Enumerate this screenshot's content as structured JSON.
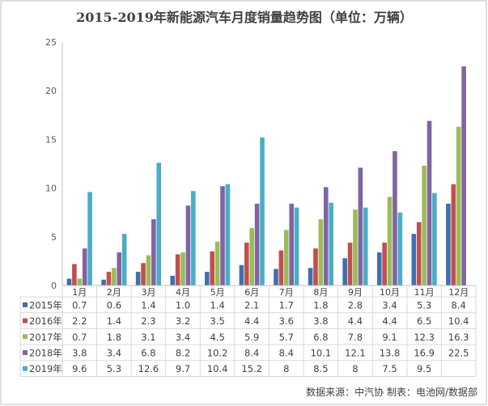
{
  "chart_data": {
    "type": "bar",
    "title": "2015-2019年新能源汽车月度销量趋势图（单位：万辆）",
    "categories": [
      "1月",
      "2月",
      "3月",
      "4月",
      "5月",
      "6月",
      "7月",
      "8月",
      "9月",
      "10月",
      "11月",
      "12月"
    ],
    "ylim": [
      0,
      25
    ],
    "yticks": [
      "0",
      "5",
      "10",
      "15",
      "20",
      "25"
    ],
    "grid": false,
    "legend": "table-left",
    "series": [
      {
        "name": "2015年",
        "color": "#3f6faf",
        "values": [
          0.7,
          0.6,
          1.4,
          1.0,
          1.4,
          2.1,
          1.7,
          1.8,
          2.8,
          3.4,
          5.3,
          8.4
        ],
        "labels": [
          "0.7",
          "0.6",
          "1.4",
          "1.0",
          "1.4",
          "2.1",
          "1.7",
          "1.8",
          "2.8",
          "3.4",
          "5.3",
          "8.4"
        ]
      },
      {
        "name": "2016年",
        "color": "#c0504d",
        "values": [
          2.2,
          1.4,
          2.3,
          3.2,
          3.5,
          4.4,
          3.6,
          3.8,
          4.4,
          4.4,
          6.5,
          10.4
        ],
        "labels": [
          "2.2",
          "1.4",
          "2.3",
          "3.2",
          "3.5",
          "4.4",
          "3.6",
          "3.8",
          "4.4",
          "4.4",
          "6.5",
          "10.4"
        ]
      },
      {
        "name": "2017年",
        "color": "#9bbb59",
        "values": [
          0.7,
          1.8,
          3.1,
          3.4,
          4.5,
          5.9,
          5.7,
          6.8,
          7.8,
          9.1,
          12.3,
          16.3
        ],
        "labels": [
          "0.7",
          "1.8",
          "3.1",
          "3.4",
          "4.5",
          "5.9",
          "5.7",
          "6.8",
          "7.8",
          "9.1",
          "12.3",
          "16.3"
        ]
      },
      {
        "name": "2018年",
        "color": "#8064a2",
        "values": [
          3.8,
          3.4,
          6.8,
          8.2,
          10.2,
          8.4,
          8.4,
          10.1,
          12.1,
          13.8,
          16.9,
          22.5
        ],
        "labels": [
          "3.8",
          "3.4",
          "6.8",
          "8.2",
          "10.2",
          "8.4",
          "8.4",
          "10.1",
          "12.1",
          "13.8",
          "16.9",
          "22.5"
        ]
      },
      {
        "name": "2019年",
        "color": "#4bacc6",
        "values": [
          9.6,
          5.3,
          12.6,
          9.7,
          10.4,
          15.2,
          8,
          8.5,
          8,
          7.5,
          9.5,
          null
        ],
        "labels": [
          "9.6",
          "5.3",
          "12.6",
          "9.7",
          "10.4",
          "15.2",
          "8",
          "8.5",
          "8",
          "7.5",
          "9.5",
          ""
        ]
      }
    ],
    "source_note": "数据来源：中汽协  制表：电池网/数据部"
  }
}
